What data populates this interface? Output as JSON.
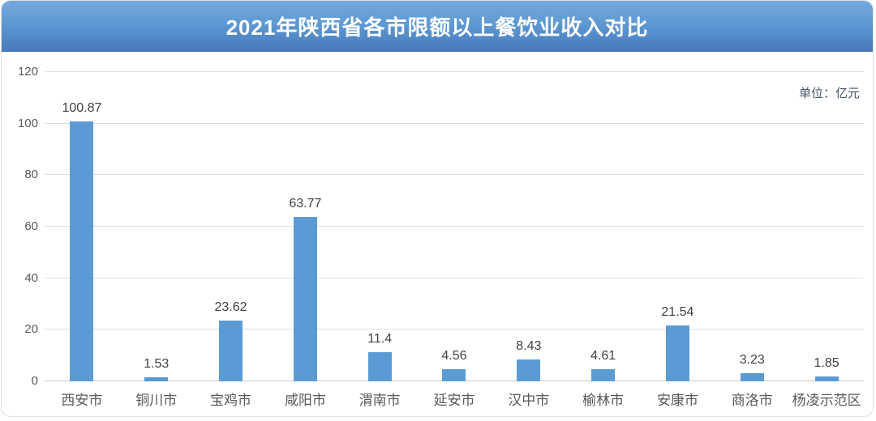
{
  "header": {
    "title": "2021年陕西省各市限额以上餐饮业收入对比"
  },
  "unit_label": "单位：亿元",
  "chart_data": {
    "type": "bar",
    "title": "2021年陕西省各市限额以上餐饮业收入对比",
    "categories": [
      "西安市",
      "铜川市",
      "宝鸡市",
      "咸阳市",
      "渭南市",
      "延安市",
      "汉中市",
      "榆林市",
      "安康市",
      "商洛市",
      "杨凌示范区"
    ],
    "values": [
      100.87,
      1.53,
      23.62,
      63.77,
      11.4,
      4.56,
      8.43,
      4.61,
      21.54,
      3.23,
      1.85
    ],
    "data_labels": [
      "100.87",
      "1.53",
      "23.62",
      "63.77",
      "11.4",
      "4.56",
      "8.43",
      "4.61",
      "21.54",
      "3.23",
      "1.85"
    ],
    "xlabel": "",
    "ylabel": "",
    "unit": "单位：亿元",
    "ylim": [
      0,
      120
    ],
    "yticks": [
      0,
      20,
      40,
      60,
      80,
      100,
      120
    ],
    "grid": true,
    "legend": "none"
  },
  "colors": {
    "bar": "#5b9bd5",
    "title_bar_gradient_top": "#74aadf",
    "title_bar_gradient_bottom": "#4579bb",
    "title_text": "#ffffff",
    "gridline": "#dedede",
    "axis_line": "#c9c9c9",
    "tick_text": "#595959",
    "value_text": "#3f3f3f",
    "unit_text": "#44546a",
    "card_border": "#e2e2e2",
    "background": "#ffffff"
  }
}
